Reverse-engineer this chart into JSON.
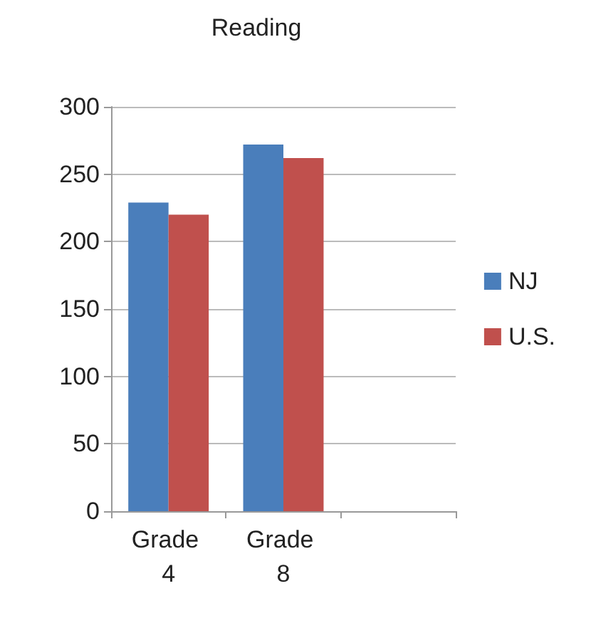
{
  "chart_data": {
    "type": "bar",
    "title": "Reading",
    "categories": [
      "Grade 4",
      "Grade 8",
      null
    ],
    "series": [
      {
        "name": "NJ",
        "color": "#4a7ebb",
        "values": [
          229,
          272,
          null
        ]
      },
      {
        "name": "U.S.",
        "color": "#c0504d",
        "values": [
          220,
          262,
          null
        ]
      }
    ],
    "ylim": [
      0,
      300
    ],
    "yticks": [
      0,
      50,
      100,
      150,
      200,
      250,
      300
    ],
    "grid": "y",
    "legend": "right"
  }
}
